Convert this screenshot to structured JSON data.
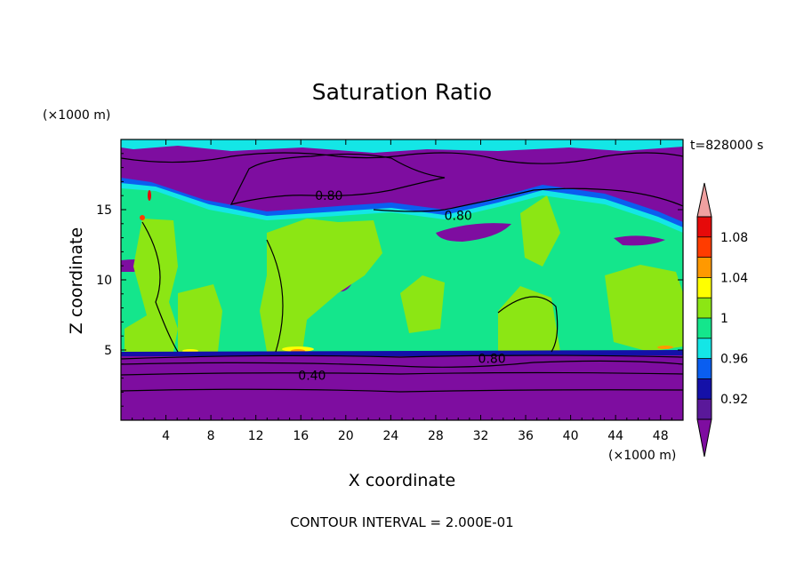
{
  "chart_data": {
    "type": "heatmap",
    "title": "Saturation Ratio",
    "xlabel": "X coordinate",
    "ylabel": "Z coordinate",
    "x_unit": "(×1000 m)",
    "y_unit": "(×1000 m)",
    "time_label": "t=828000 s",
    "footer": "CONTOUR INTERVAL = 2.000E-01",
    "xlim": [
      0,
      50
    ],
    "ylim": [
      0,
      20
    ],
    "x_ticks": [
      "4",
      "8",
      "12",
      "16",
      "20",
      "24",
      "28",
      "32",
      "36",
      "40",
      "44",
      "48"
    ],
    "y_ticks": [
      "5",
      "10",
      "15"
    ],
    "contour_labels": [
      {
        "text": "0.80",
        "x": 18.5,
        "y": 16.0
      },
      {
        "text": "0.80",
        "x": 30.0,
        "y": 14.6
      },
      {
        "text": "0.80",
        "x": 33.0,
        "y": 4.4
      },
      {
        "text": "0.40",
        "x": 17.0,
        "y": 3.2
      }
    ],
    "colorbar": {
      "labels": [
        "1.08",
        "1.04",
        "1",
        "0.96",
        "0.92"
      ],
      "levels": [
        {
          "min": 0.9,
          "max": 0.92,
          "color": "#5a189a"
        },
        {
          "min": 0.92,
          "max": 0.94,
          "color": "#1410a8"
        },
        {
          "min": 0.94,
          "max": 0.96,
          "color": "#0a5ef0"
        },
        {
          "min": 0.96,
          "max": 0.98,
          "color": "#14e6e6"
        },
        {
          "min": 0.98,
          "max": 1.0,
          "color": "#14e68c"
        },
        {
          "min": 1.0,
          "max": 1.02,
          "color": "#8ce614"
        },
        {
          "min": 1.02,
          "max": 1.04,
          "color": "#ffff00"
        },
        {
          "min": 1.04,
          "max": 1.06,
          "color": "#ff9900"
        },
        {
          "min": 1.06,
          "max": 1.08,
          "color": "#ff3c00"
        },
        {
          "min": 1.08,
          "max": 1.1,
          "color": "#e60a0a"
        }
      ],
      "under_color": "#7e0da0",
      "over_color": "#f0a0a0"
    }
  }
}
